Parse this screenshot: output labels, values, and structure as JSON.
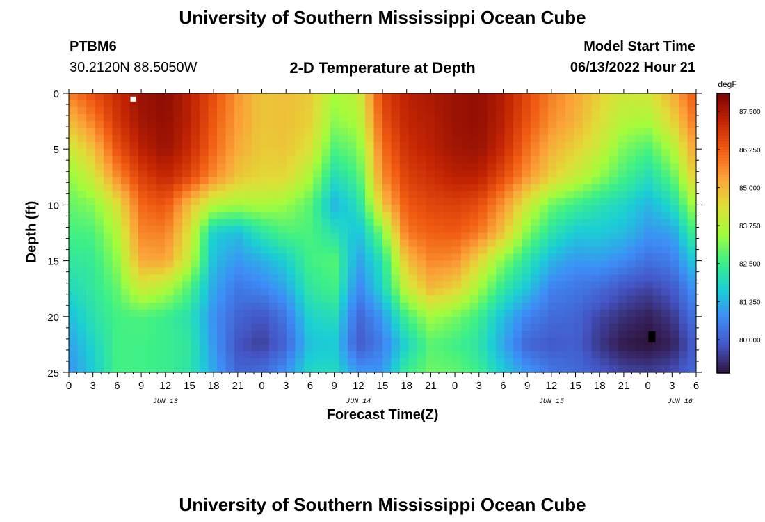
{
  "header": {
    "title": "University of Southern Mississippi Ocean Cube",
    "station_id": "PTBM6",
    "coordinates": "30.2120N  88.5050W",
    "chart_title": "2-D Temperature at Depth",
    "model_start_label": "Model Start Time",
    "model_start_value": "06/13/2022 Hour 21"
  },
  "footer": {
    "title": "University of Southern Mississippi Ocean Cube"
  },
  "colors": {
    "colormap": [
      "#30123b",
      "#4455c4",
      "#3e8cf7",
      "#1bcfd4",
      "#3ef086",
      "#a4fc3b",
      "#e1dd37",
      "#fba238",
      "#f05b12",
      "#c42503",
      "#7a0403"
    ]
  },
  "chart_data": {
    "type": "heatmap",
    "title": "2-D Temperature at Depth",
    "xlabel": "Forecast Time(Z)",
    "ylabel": "Depth (ft)",
    "colorbar_unit": "degF",
    "colorbar_ticks": [
      "87.500",
      "86.250",
      "85.000",
      "83.750",
      "82.500",
      "81.250",
      "80.000"
    ],
    "colorbar_tick_values": [
      87.5,
      86.25,
      85.0,
      83.75,
      82.5,
      81.25,
      80.0
    ],
    "zlim": [
      78.9,
      88.1
    ],
    "xlim": [
      0,
      78
    ],
    "ylim": [
      0,
      25
    ],
    "x_tick_hours": [
      0,
      3,
      6,
      9,
      12,
      15,
      18,
      21,
      24,
      27,
      30,
      33,
      36,
      39,
      42,
      45,
      48,
      51,
      54,
      57,
      60,
      63,
      66,
      69,
      72,
      75,
      78
    ],
    "x_tick_labels": [
      "0",
      "3",
      "6",
      "9",
      "12",
      "15",
      "18",
      "21",
      "0",
      "3",
      "6",
      "9",
      "12",
      "15",
      "18",
      "21",
      "0",
      "3",
      "6",
      "9",
      "12",
      "15",
      "18",
      "21",
      "0",
      "3",
      "6"
    ],
    "y_ticks": [
      0,
      5,
      10,
      15,
      20,
      25
    ],
    "y_tick_labels": [
      "0",
      "5",
      "10",
      "15",
      "20",
      "25"
    ],
    "date_labels": [
      {
        "hour": 12,
        "label": "JUN 13"
      },
      {
        "hour": 36,
        "label": "JUN 14"
      },
      {
        "hour": 60,
        "label": "JUN 15"
      },
      {
        "hour": 76,
        "label": "JUN 16"
      }
    ],
    "depth_levels_ft": [
      0,
      2.5,
      5,
      7.5,
      10,
      12.5,
      15,
      17.5,
      20,
      22.5,
      25
    ],
    "time_hours": [
      0,
      3,
      6,
      9,
      12,
      15,
      18,
      21,
      24,
      27,
      30,
      33,
      36,
      39,
      42,
      45,
      48,
      51,
      54,
      57,
      60,
      63,
      66,
      69,
      72,
      75,
      78
    ],
    "temperature_degF": [
      [
        85.8,
        86.5,
        87.1,
        87.7,
        87.9,
        87.3,
        86.5,
        85.5,
        84.8,
        84.9,
        84.7,
        83.6,
        83.9,
        86.7,
        87.3,
        87.5,
        87.7,
        87.8,
        87.4,
        86.6,
        85.8,
        85.3,
        84.6,
        84.1,
        84.2,
        85.1,
        86.4
      ],
      [
        84.9,
        85.8,
        86.9,
        87.6,
        87.8,
        87.3,
        86.3,
        85.4,
        84.8,
        84.9,
        84.6,
        83.3,
        83.6,
        86.4,
        87.2,
        87.4,
        87.7,
        87.8,
        87.3,
        86.4,
        85.6,
        85.1,
        84.4,
        83.7,
        83.6,
        84.5,
        86.0
      ],
      [
        84.0,
        84.9,
        86.4,
        87.3,
        87.7,
        87.1,
        86.1,
        85.2,
        84.7,
        84.8,
        84.3,
        82.7,
        83.1,
        86.0,
        87.0,
        87.3,
        87.6,
        87.7,
        87.1,
        86.0,
        85.1,
        84.6,
        84.0,
        83.1,
        82.7,
        83.6,
        85.4
      ],
      [
        83.3,
        84.1,
        85.6,
        86.7,
        87.2,
        86.6,
        85.6,
        84.8,
        84.5,
        84.5,
        83.6,
        82.0,
        82.6,
        85.6,
        86.7,
        87.0,
        87.3,
        87.3,
        86.5,
        85.5,
        84.6,
        84.0,
        83.3,
        82.6,
        82.0,
        82.8,
        84.8
      ],
      [
        82.9,
        83.2,
        84.3,
        86.1,
        86.4,
        84.9,
        83.7,
        83.5,
        83.6,
        83.4,
        82.8,
        81.3,
        82.0,
        84.8,
        86.3,
        86.6,
        86.7,
        86.5,
        85.5,
        84.1,
        83.0,
        82.5,
        82.1,
        81.8,
        81.3,
        81.9,
        83.7
      ],
      [
        82.6,
        82.7,
        83.7,
        85.7,
        85.8,
        84.3,
        81.7,
        81.4,
        82.2,
        82.7,
        82.7,
        82.1,
        81.4,
        83.1,
        85.9,
        86.2,
        86.3,
        85.9,
        84.8,
        83.2,
        82.2,
        81.6,
        81.6,
        81.4,
        80.9,
        81.0,
        82.7
      ],
      [
        82.3,
        82.4,
        83.3,
        85.2,
        85.3,
        83.9,
        81.4,
        80.9,
        81.2,
        81.7,
        82.6,
        82.8,
        81.0,
        82.1,
        84.9,
        85.7,
        85.6,
        84.5,
        83.2,
        82.2,
        81.3,
        80.9,
        81.0,
        80.7,
        80.3,
        80.5,
        81.7
      ],
      [
        81.9,
        82.3,
        82.9,
        84.1,
        83.7,
        82.7,
        81.1,
        80.4,
        80.6,
        81.1,
        82.3,
        82.6,
        80.6,
        81.8,
        84.0,
        85.0,
        84.6,
        83.5,
        82.3,
        81.5,
        80.6,
        80.4,
        80.2,
        79.8,
        79.6,
        79.9,
        80.9
      ],
      [
        81.4,
        82.1,
        82.6,
        82.7,
        82.5,
        82.1,
        80.8,
        80.1,
        79.8,
        80.4,
        81.8,
        82.0,
        80.1,
        80.9,
        82.6,
        83.5,
        83.1,
        82.5,
        81.4,
        80.6,
        80.2,
        80.1,
        79.6,
        79.3,
        79.1,
        79.4,
        80.4
      ],
      [
        81.0,
        81.8,
        82.6,
        82.6,
        82.5,
        82.3,
        80.9,
        79.8,
        79.5,
        80.1,
        81.5,
        81.6,
        79.9,
        80.5,
        81.8,
        82.8,
        82.6,
        82.2,
        81.1,
        80.1,
        79.9,
        80.0,
        79.4,
        79.0,
        78.9,
        79.1,
        80.0
      ],
      [
        80.8,
        81.6,
        82.6,
        82.6,
        82.5,
        82.2,
        81.1,
        80.1,
        80.2,
        80.8,
        81.9,
        81.9,
        80.9,
        80.9,
        82.5,
        83.0,
        82.9,
        82.5,
        81.6,
        80.9,
        80.4,
        80.2,
        79.9,
        79.6,
        79.5,
        79.7,
        80.2
      ]
    ],
    "markers": [
      {
        "type": "white-square",
        "hour": 8,
        "depth_ft": 0.3
      },
      {
        "type": "black-rectangle",
        "hour": 72.5,
        "depth_ft": 21.0
      }
    ]
  }
}
